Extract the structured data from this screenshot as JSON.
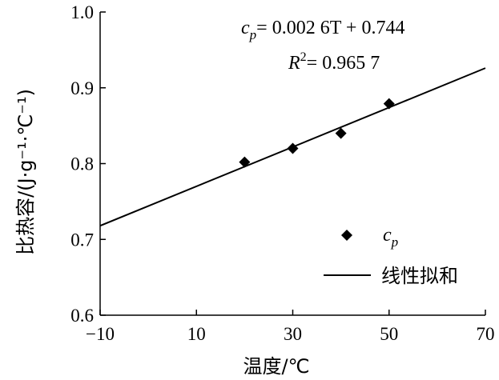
{
  "chart_data": {
    "type": "scatter",
    "title": "",
    "xlabel": "温度/℃",
    "ylabel": "比热容/(J·g⁻¹·℃⁻¹)",
    "xlim": [
      -10,
      70
    ],
    "ylim": [
      0.6,
      1.0
    ],
    "x_ticks": [
      "−10",
      "10",
      "30",
      "50",
      "70"
    ],
    "x_tick_values": [
      -10,
      10,
      30,
      50,
      70
    ],
    "y_ticks": [
      "0.6",
      "0.7",
      "0.8",
      "0.9",
      "1.0"
    ],
    "y_tick_values": [
      0.6,
      0.7,
      0.8,
      0.9,
      1.0
    ],
    "grid": false,
    "legend_position": "lower-right",
    "series": [
      {
        "name": "c_p",
        "kind": "scatter",
        "marker": "diamond",
        "x": [
          20,
          30,
          40,
          50
        ],
        "y": [
          0.802,
          0.82,
          0.84,
          0.879
        ]
      },
      {
        "name": "线性拟和",
        "kind": "line",
        "slope": 0.0026,
        "intercept": 0.744
      }
    ],
    "annotations": {
      "equation": {
        "lhs_main": "c",
        "lhs_sub": "p",
        "rhs": "= 0.002 6T + 0.744"
      },
      "r_squared": {
        "main": "R",
        "sup": "2",
        "rhs": "= 0.965 7"
      }
    },
    "legend": {
      "scatter_main": "c",
      "scatter_sub": "p",
      "line_label": "线性拟和"
    }
  }
}
